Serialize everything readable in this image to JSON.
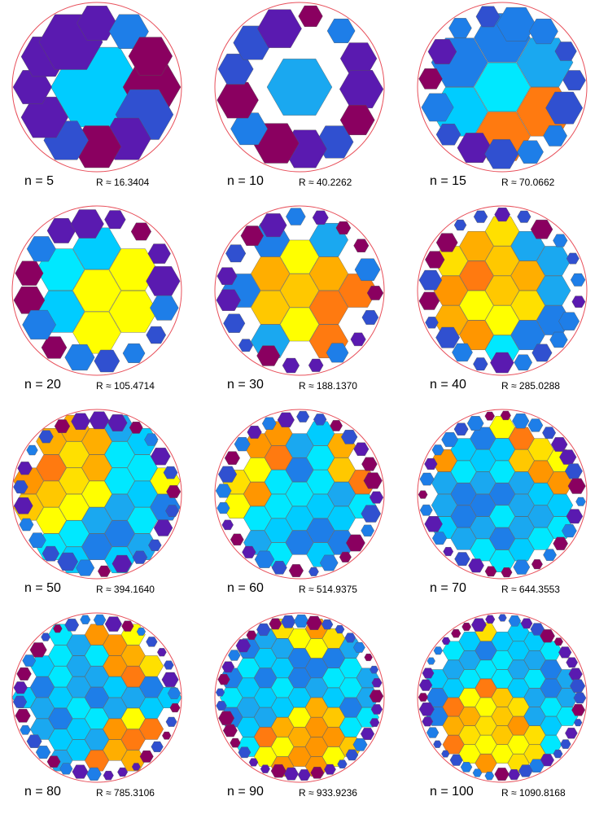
{
  "panels": [
    {
      "n_label": "n = 5",
      "r_label": "R ≈ 16.3404",
      "n": 5
    },
    {
      "n_label": "n = 10",
      "r_label": "R ≈ 40.2262",
      "n": 10
    },
    {
      "n_label": "n = 15",
      "r_label": "R ≈ 70.0662",
      "n": 15
    },
    {
      "n_label": "n = 20",
      "r_label": "R ≈ 105.4714",
      "n": 20
    },
    {
      "n_label": "n = 30",
      "r_label": "R ≈ 188.1370",
      "n": 30
    },
    {
      "n_label": "n = 40",
      "r_label": "R ≈ 285.0288",
      "n": 40
    },
    {
      "n_label": "n = 50",
      "r_label": "R ≈ 394.1640",
      "n": 50
    },
    {
      "n_label": "n = 60",
      "r_label": "R ≈ 514.9375",
      "n": 60
    },
    {
      "n_label": "n = 70",
      "r_label": "R ≈ 644.3553",
      "n": 70
    },
    {
      "n_label": "n = 80",
      "r_label": "R ≈ 785.3106",
      "n": 80
    },
    {
      "n_label": "n = 90",
      "r_label": "R ≈ 933.9236",
      "n": 90
    },
    {
      "n_label": "n = 100",
      "r_label": "R ≈ 1090.8168",
      "n": 100
    }
  ],
  "colors": {
    "circle": "#e8505b",
    "hex_outline": "#555555",
    "palette": [
      "#ffff00",
      "#ffe000",
      "#ffc800",
      "#ffae00",
      "#ff9600",
      "#ff7a10",
      "#00e8ff",
      "#00ccff",
      "#1aa8f0",
      "#1e7ee8",
      "#3050d0",
      "#5a1ab0",
      "#8a0060"
    ]
  }
}
